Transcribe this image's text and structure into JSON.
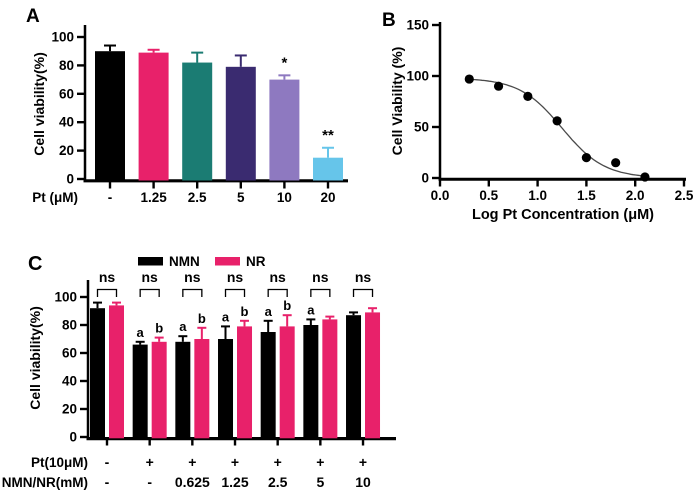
{
  "colors": {
    "black": "#000000",
    "pink": "#E8216A",
    "teal": "#1B7C73",
    "dark_purple": "#3A2B70",
    "light_purple": "#8E79C0",
    "light_blue": "#66C5EA",
    "curve": "#4a4a4a"
  },
  "chart_data": [
    {
      "panel": "A",
      "type": "bar",
      "ylabel": "Cell viability(%)",
      "xlabel": "Pt (μM)",
      "ylim": [
        0,
        105
      ],
      "yticks": [
        0,
        20,
        40,
        60,
        80,
        100
      ],
      "categories": [
        "-",
        "1.25",
        "2.5",
        "5",
        "10",
        "20"
      ],
      "values": [
        90,
        89,
        82,
        79,
        70,
        15
      ],
      "errors": [
        4,
        2,
        7,
        8,
        3,
        7
      ],
      "bar_color_keys": [
        "black",
        "pink",
        "teal",
        "dark_purple",
        "light_purple",
        "light_blue"
      ],
      "sig_labels": [
        "",
        "",
        "",
        "",
        "*",
        "**"
      ]
    },
    {
      "panel": "B",
      "type": "scatter",
      "ylabel": "Cell Viability (%)",
      "xlabel": "Log Pt Concentration (μM)",
      "ylim": [
        0,
        150
      ],
      "yticks": [
        0,
        50,
        100,
        150
      ],
      "xlim": [
        0,
        2.5
      ],
      "xtick_labels": [
        "0.0",
        "0.5",
        "1.0",
        "1.5",
        "2.0",
        "2.5"
      ],
      "x": [
        0.3,
        0.6,
        0.9,
        1.2,
        1.5,
        1.8,
        2.1
      ],
      "y": [
        97,
        90,
        80,
        56,
        20,
        15,
        1
      ],
      "fit_curve": {
        "top": 98,
        "bottom": 0,
        "log_ic50": 1.25,
        "hill_slope": 2
      }
    },
    {
      "panel": "C",
      "type": "grouped_bar",
      "ylabel": "Cell viability(%)",
      "ylim": [
        0,
        105
      ],
      "yticks": [
        0,
        20,
        40,
        60,
        80,
        100
      ],
      "legend": [
        {
          "label": "NMN",
          "color_key": "black"
        },
        {
          "label": "NR",
          "color_key": "pink"
        }
      ],
      "series": [
        {
          "name": "NMN",
          "color_key": "black",
          "values": [
            92,
            66,
            68,
            70,
            75,
            80,
            87
          ],
          "errors": [
            4,
            2,
            4,
            9,
            8,
            4,
            2
          ],
          "letters": [
            "",
            "a",
            "a",
            "a",
            "a",
            "a",
            ""
          ]
        },
        {
          "name": "NR",
          "color_key": "pink",
          "values": [
            94,
            68,
            70,
            79,
            79,
            84,
            89
          ],
          "errors": [
            2,
            3,
            8,
            4,
            8,
            2,
            3
          ],
          "letters": [
            "",
            "b",
            "b",
            "b",
            "b",
            "",
            ""
          ]
        }
      ],
      "comparison_labels": [
        "ns",
        "ns",
        "ns",
        "ns",
        "ns",
        "ns",
        "ns"
      ],
      "x_rows": [
        {
          "label": "Pt(10μM)",
          "values": [
            "-",
            "+",
            "+",
            "+",
            "+",
            "+",
            "+"
          ]
        },
        {
          "label": "NMN/NR(mM)",
          "values": [
            "-",
            "-",
            "0.625",
            "1.25",
            "2.5",
            "5",
            "10"
          ]
        }
      ]
    }
  ]
}
